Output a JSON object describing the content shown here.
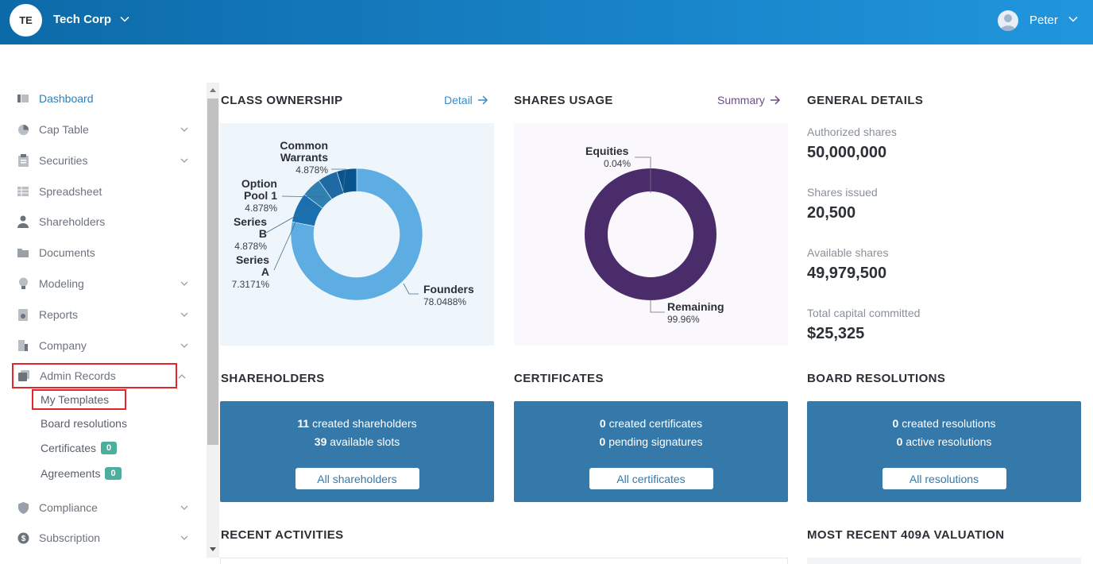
{
  "header": {
    "org_initials": "TE",
    "org_name": "Tech Corp",
    "user_name": "Peter"
  },
  "sidebar": {
    "items": [
      {
        "label": "Dashboard",
        "icon": "dashboard-icon"
      },
      {
        "label": "Cap Table",
        "icon": "pie-chart-icon"
      },
      {
        "label": "Securities",
        "icon": "clipboard-icon"
      },
      {
        "label": "Spreadsheet",
        "icon": "table-icon"
      },
      {
        "label": "Shareholders",
        "icon": "person-icon"
      },
      {
        "label": "Documents",
        "icon": "folder-icon"
      },
      {
        "label": "Modeling",
        "icon": "lightbulb-icon"
      },
      {
        "label": "Reports",
        "icon": "report-icon"
      },
      {
        "label": "Company",
        "icon": "building-icon"
      },
      {
        "label": "Admin Records",
        "icon": "records-icon"
      },
      {
        "label": "Compliance",
        "icon": "shield-icon"
      },
      {
        "label": "Subscription",
        "icon": "dollar-icon"
      }
    ],
    "admin_sub": {
      "my_templates": "My Templates",
      "board_resolutions": "Board resolutions",
      "certificates": "Certificates",
      "certificates_badge": "0",
      "agreements": "Agreements",
      "agreements_badge": "0"
    }
  },
  "class_ownership": {
    "title": "CLASS OWNERSHIP",
    "link": "Detail",
    "chart_data": {
      "type": "pie",
      "categories": [
        "Founders",
        "Series A",
        "Series B",
        "Option Pool 1",
        "Common Warrants"
      ],
      "values": [
        78.0488,
        7.3171,
        4.878,
        4.878,
        4.878
      ],
      "labels": {
        "founders": "Founders",
        "founders_pct": "78.0488%",
        "series_a_1": "Series",
        "series_a_2": "A",
        "series_a_pct": "7.3171%",
        "series_b_1": "Series",
        "series_b_2": "B",
        "series_b_pct": "4.878%",
        "option_1": "Option",
        "option_2": "Pool 1",
        "option_pct": "4.878%",
        "common_1": "Common",
        "common_2": "Warrants",
        "common_pct": "4.878%"
      },
      "colors": [
        "#5dade2",
        "#1a6fae",
        "#2f7fb0",
        "#1f6aa5",
        "#07548f"
      ]
    }
  },
  "shares_usage": {
    "title": "SHARES USAGE",
    "link": "Summary",
    "chart_data": {
      "type": "pie",
      "categories": [
        "Remaining",
        "Equities"
      ],
      "values": [
        99.96,
        0.04
      ],
      "labels": {
        "equities": "Equities",
        "equities_pct": "0.04%",
        "remaining": "Remaining",
        "remaining_pct": "99.96%"
      },
      "colors": [
        "#4a2c6b",
        "#4a2c6b"
      ]
    }
  },
  "general_details": {
    "title": "GENERAL DETAILS",
    "authorized_label": "Authorized shares",
    "authorized_value": "50,000,000",
    "issued_label": "Shares issued",
    "issued_value": "20,500",
    "available_label": "Available shares",
    "available_value": "49,979,500",
    "capital_label": "Total capital committed",
    "capital_value": "$25,325"
  },
  "shareholders": {
    "title": "SHAREHOLDERS",
    "count1": "11",
    "text1": "created shareholders",
    "count2": "39",
    "text2": "available slots",
    "button": "All shareholders"
  },
  "certificates": {
    "title": "CERTIFICATES",
    "count1": "0",
    "text1": "created certificates",
    "count2": "0",
    "text2": "pending signatures",
    "button": "All certificates"
  },
  "board_resolutions": {
    "title": "BOARD RESOLUTIONS",
    "count1": "0",
    "text1": "created resolutions",
    "count2": "0",
    "text2": "active resolutions",
    "button": "All resolutions"
  },
  "recent_activities": {
    "title": "RECENT ACTIVITIES"
  },
  "valuation": {
    "title": "MOST RECENT 409A VALUATION"
  }
}
